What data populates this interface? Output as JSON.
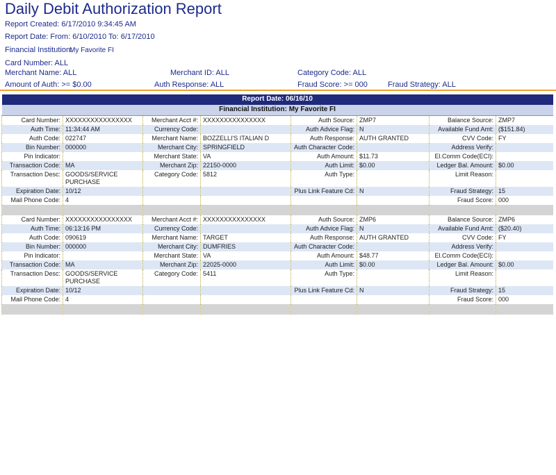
{
  "header": {
    "title": "Daily Debit Authorization Report",
    "created": "Report Created: 6/17/2010 9:34:45 AM",
    "report_date": "Report Date: From: 6/10/2010 To: 6/17/2010",
    "fi_label": "Financial Institution:",
    "fi_value": "My Favorite FI",
    "card_number": "Card Number: ALL",
    "merchant_name": "Merchant Name: ALL",
    "merchant_id": "Merchant ID: ALL",
    "category_code": "Category Code: ALL",
    "amount_of_auth": "Amount of Auth: >= $0.00",
    "auth_response": "Auth Response: ALL",
    "fraud_score": "Fraud Score: >= 000",
    "fraud_strategy": "Fraud Strategy: ALL"
  },
  "table": {
    "report_date": "Report Date: 06/16/10",
    "institution": "Financial Institution:  My Favorite FI",
    "records": [
      {
        "rows": [
          [
            "Card Number:",
            "XXXXXXXXXXXXXXXX",
            "Merchant Acct #:",
            "XXXXXXXXXXXXXXX",
            "Auth Source:",
            "ZMP7",
            "Balance Source:",
            "ZMP7"
          ],
          [
            "Auth Time:",
            "11:34:44 AM",
            "Currency Code:",
            null,
            "Auth Advice Flag:",
            "N",
            "Available Fund Amt:",
            "($151.84)"
          ],
          [
            "Auth Code:",
            "022747",
            "Merchant Name:",
            "BOZZELLI'S ITALIAN D",
            "Auth Response:",
            "AUTH GRANTED",
            "CVV Code:",
            "FY"
          ],
          [
            "Bin Number:",
            "000000",
            "Merchant City:",
            "SPRINGFIELD",
            "Auth Character Code:",
            null,
            "Address Verify:",
            null
          ],
          [
            "Pin Indicator:",
            null,
            "Merchant State:",
            "VA",
            "Auth Amount:",
            "$11.73",
            "El.Comm Code(ECI):",
            null
          ],
          [
            "Transaction Code:",
            "MA",
            "Merchant Zip:",
            "22150-0000",
            "Auth Limit:",
            "$0.00",
            "Ledger Bal. Amount:",
            "$0.00"
          ],
          [
            "Transaction Desc:",
            "GOODS/SERVICE PURCHASE",
            "Category Code:",
            "5812",
            "Auth Type:",
            null,
            "Limit Reason:",
            null
          ],
          [
            "Expiration Date:",
            "10/12",
            null,
            null,
            "Plus Link Feature Cd:",
            "N",
            "Fraud Strategy:",
            "15"
          ],
          [
            "Mail Phone Code:",
            "4",
            null,
            null,
            null,
            null,
            "Fraud Score:",
            "000"
          ]
        ]
      },
      {
        "rows": [
          [
            "Card Number:",
            "XXXXXXXXXXXXXXXX",
            "Merchant Acct #:",
            "XXXXXXXXXXXXXXX",
            "Auth Source:",
            "ZMP6",
            "Balance Source:",
            "ZMP6"
          ],
          [
            "Auth Time:",
            "06:13:16 PM",
            "Currency Code:",
            null,
            "Auth Advice Flag:",
            "N",
            "Available Fund Amt:",
            "($20.40)"
          ],
          [
            "Auth Code:",
            "090619",
            "Merchant Name:",
            "TARGET",
            "Auth Response:",
            "AUTH GRANTED",
            "CVV Code:",
            "FY"
          ],
          [
            "Bin Number:",
            "000000",
            "Merchant City:",
            "DUMFRIES",
            "Auth Character Code:",
            null,
            "Address Verify:",
            null
          ],
          [
            "Pin Indicator:",
            null,
            "Merchant State:",
            "VA",
            "Auth Amount:",
            "$48.77",
            "El.Comm Code(ECI):",
            null
          ],
          [
            "Transaction Code:",
            "MA",
            "Merchant Zip:",
            "22025-0000",
            "Auth Limit:",
            "$0.00",
            "Ledger Bal. Amount:",
            "$0.00"
          ],
          [
            "Transaction Desc:",
            "GOODS/SERVICE PURCHASE",
            "Category Code:",
            "5411",
            "Auth Type:",
            null,
            "Limit Reason:",
            null
          ],
          [
            "Expiration Date:",
            "10/12",
            null,
            null,
            "Plus Link Feature Cd:",
            "N",
            "Fraud Strategy:",
            "15"
          ],
          [
            "Mail Phone Code:",
            "4",
            null,
            null,
            null,
            null,
            "Fraud Score:",
            "000"
          ]
        ]
      }
    ]
  }
}
